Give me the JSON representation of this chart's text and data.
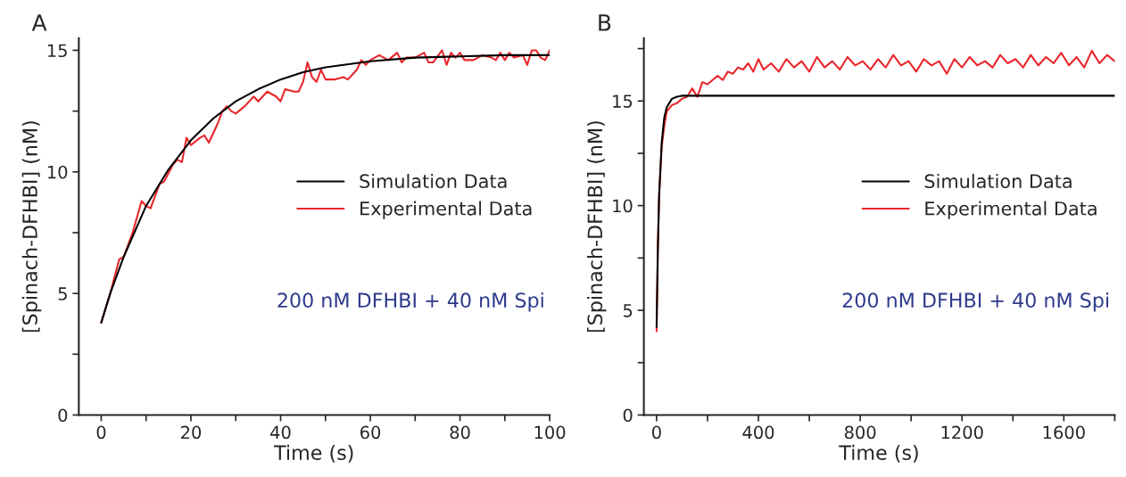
{
  "chart_data": [
    {
      "type": "line",
      "title": "A",
      "xlabel": "Time (s)",
      "ylabel": "[Spinach-DFHBI] (nM)",
      "xlim": [
        -5,
        100
      ],
      "ylim": [
        0,
        15.5
      ],
      "xticks": [
        0,
        {
          "value": 10,
          "label": null
        },
        20,
        {
          "value": 30,
          "label": null
        },
        40,
        {
          "value": 50,
          "label": null
        },
        60,
        {
          "value": 70,
          "label": null
        },
        80,
        {
          "value": 90,
          "label": null
        },
        100
      ],
      "yticks": [
        0,
        {
          "value": 2.5,
          "label": null
        },
        5,
        {
          "value": 7.5,
          "label": null
        },
        10,
        {
          "value": 12.5,
          "label": null
        },
        15
      ],
      "legend": "right",
      "grid": false,
      "marker": "none",
      "line_style": "solid",
      "annotations": [
        "200 nM DFHBI + 40 nM Spi"
      ],
      "series": [
        {
          "name": "Simulation Data",
          "color": "#000000",
          "x": [
            0,
            2,
            5,
            10,
            15,
            20,
            25,
            30,
            35,
            40,
            45,
            50,
            60,
            70,
            80,
            90,
            100
          ],
          "values": [
            3.8,
            5.0,
            6.5,
            8.6,
            10.1,
            11.3,
            12.2,
            12.9,
            13.4,
            13.8,
            14.1,
            14.3,
            14.55,
            14.7,
            14.75,
            14.8,
            14.8
          ]
        },
        {
          "name": "Experimental Data",
          "color": "#e8262b",
          "x": [
            0,
            2,
            4,
            5,
            7,
            9,
            10,
            11,
            13,
            14,
            16,
            17,
            18,
            19,
            20,
            22,
            23,
            24,
            26,
            27,
            28,
            29,
            30,
            32,
            34,
            35,
            37,
            39,
            40,
            41,
            43,
            44,
            45,
            46,
            47,
            48,
            49,
            50,
            52,
            54,
            55,
            57,
            58,
            59,
            60,
            62,
            64,
            66,
            67,
            68,
            70,
            72,
            73,
            74,
            76,
            77,
            78,
            79,
            80,
            81,
            83,
            85,
            87,
            88,
            89,
            90,
            91,
            92,
            94,
            95,
            96,
            97,
            98,
            99,
            100
          ],
          "values": [
            3.8,
            5.0,
            6.4,
            6.5,
            7.5,
            8.8,
            8.6,
            8.5,
            9.5,
            9.6,
            10.3,
            10.5,
            10.4,
            11.4,
            11.1,
            11.4,
            11.5,
            11.2,
            12.0,
            12.5,
            12.7,
            12.5,
            12.4,
            12.7,
            13.1,
            12.9,
            13.3,
            13.1,
            12.9,
            13.4,
            13.3,
            13.3,
            13.7,
            14.5,
            13.9,
            13.7,
            14.2,
            13.8,
            13.8,
            13.9,
            13.8,
            14.2,
            14.6,
            14.4,
            14.6,
            14.8,
            14.6,
            14.9,
            14.5,
            14.7,
            14.7,
            14.9,
            14.5,
            14.5,
            15.0,
            14.4,
            14.9,
            14.7,
            14.9,
            14.6,
            14.6,
            14.8,
            14.7,
            14.6,
            14.9,
            14.6,
            14.9,
            14.7,
            14.8,
            14.4,
            15.0,
            15.0,
            14.7,
            14.6,
            15.0
          ]
        }
      ]
    },
    {
      "type": "line",
      "title": "B",
      "xlabel": "Time (s)",
      "ylabel": "[Spinach-DFHBI] (nM)",
      "xlim": [
        -50,
        1800
      ],
      "ylim": [
        0,
        18
      ],
      "xticks": [
        0,
        {
          "value": 200,
          "label": null
        },
        400,
        {
          "value": 600,
          "label": null
        },
        800,
        {
          "value": 1000,
          "label": null
        },
        1200,
        {
          "value": 1400,
          "label": null
        },
        1600,
        {
          "value": 1800,
          "label": null
        }
      ],
      "yticks": [
        0,
        {
          "value": 2.5,
          "label": null
        },
        5,
        {
          "value": 7.5,
          "label": null
        },
        10,
        {
          "value": 12.5,
          "label": null
        },
        15,
        {
          "value": 17.5,
          "label": null
        }
      ],
      "legend": "right",
      "grid": false,
      "marker": "none",
      "line_style": "solid",
      "annotations": [
        "200 nM DFHBI + 40 nM Spi"
      ],
      "series": [
        {
          "name": "Simulation Data",
          "color": "#000000",
          "x": [
            0,
            5,
            10,
            20,
            30,
            40,
            60,
            80,
            100,
            1800
          ],
          "values": [
            4.2,
            8.0,
            10.5,
            13.0,
            14.2,
            14.7,
            15.1,
            15.2,
            15.25,
            15.25
          ]
        },
        {
          "name": "Experimental Data",
          "color": "#e8262b",
          "x": [
            0,
            5,
            10,
            20,
            30,
            40,
            60,
            80,
            100,
            120,
            140,
            160,
            180,
            200,
            220,
            240,
            260,
            280,
            300,
            320,
            340,
            360,
            380,
            400,
            420,
            450,
            480,
            510,
            540,
            570,
            600,
            630,
            660,
            690,
            720,
            750,
            780,
            810,
            840,
            870,
            900,
            930,
            960,
            990,
            1020,
            1050,
            1080,
            1110,
            1140,
            1170,
            1200,
            1230,
            1260,
            1290,
            1320,
            1350,
            1380,
            1410,
            1440,
            1470,
            1500,
            1530,
            1560,
            1590,
            1620,
            1650,
            1680,
            1710,
            1740,
            1770,
            1800
          ],
          "values": [
            4.0,
            8.0,
            10.5,
            12.8,
            13.8,
            14.5,
            14.8,
            14.9,
            15.1,
            15.2,
            15.6,
            15.2,
            15.9,
            15.8,
            16.0,
            16.2,
            16.0,
            16.4,
            16.3,
            16.6,
            16.5,
            16.8,
            16.4,
            17.0,
            16.5,
            16.8,
            16.4,
            17.0,
            16.6,
            16.9,
            16.4,
            17.1,
            16.6,
            16.9,
            16.5,
            17.1,
            16.7,
            16.9,
            16.5,
            17.0,
            16.6,
            17.2,
            16.7,
            16.9,
            16.4,
            17.0,
            16.7,
            16.9,
            16.3,
            17.0,
            16.6,
            17.1,
            16.7,
            16.9,
            16.6,
            17.2,
            16.8,
            17.0,
            16.6,
            17.2,
            16.7,
            17.1,
            16.8,
            17.3,
            16.7,
            17.1,
            16.6,
            17.4,
            16.8,
            17.2,
            16.9
          ]
        }
      ]
    }
  ]
}
